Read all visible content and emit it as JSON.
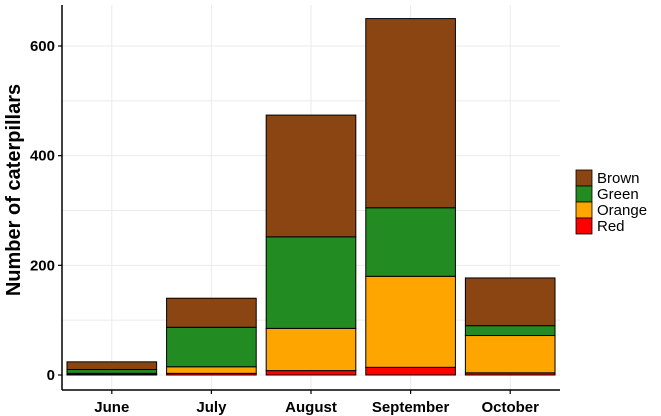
{
  "chart_data": {
    "type": "bar",
    "stacked": true,
    "categories": [
      "June",
      "July",
      "August",
      "September",
      "October"
    ],
    "series": [
      {
        "name": "Red",
        "color": "#ff0000",
        "values": [
          1,
          3,
          8,
          14,
          4
        ]
      },
      {
        "name": "Orange",
        "color": "#ffa500",
        "values": [
          2,
          12,
          77,
          166,
          68
        ]
      },
      {
        "name": "Green",
        "color": "#228b22",
        "values": [
          7,
          72,
          167,
          125,
          18
        ]
      },
      {
        "name": "Brown",
        "color": "#8b4513",
        "values": [
          14,
          53,
          222,
          345,
          87
        ]
      }
    ],
    "legend_order": [
      "Brown",
      "Green",
      "Orange",
      "Red"
    ],
    "title": "",
    "xlabel": "",
    "ylabel": "Number of caterpillars",
    "ylim": [
      0,
      660
    ],
    "yticks": [
      0,
      200,
      400,
      600
    ],
    "grid": true,
    "legend_position": "right"
  }
}
